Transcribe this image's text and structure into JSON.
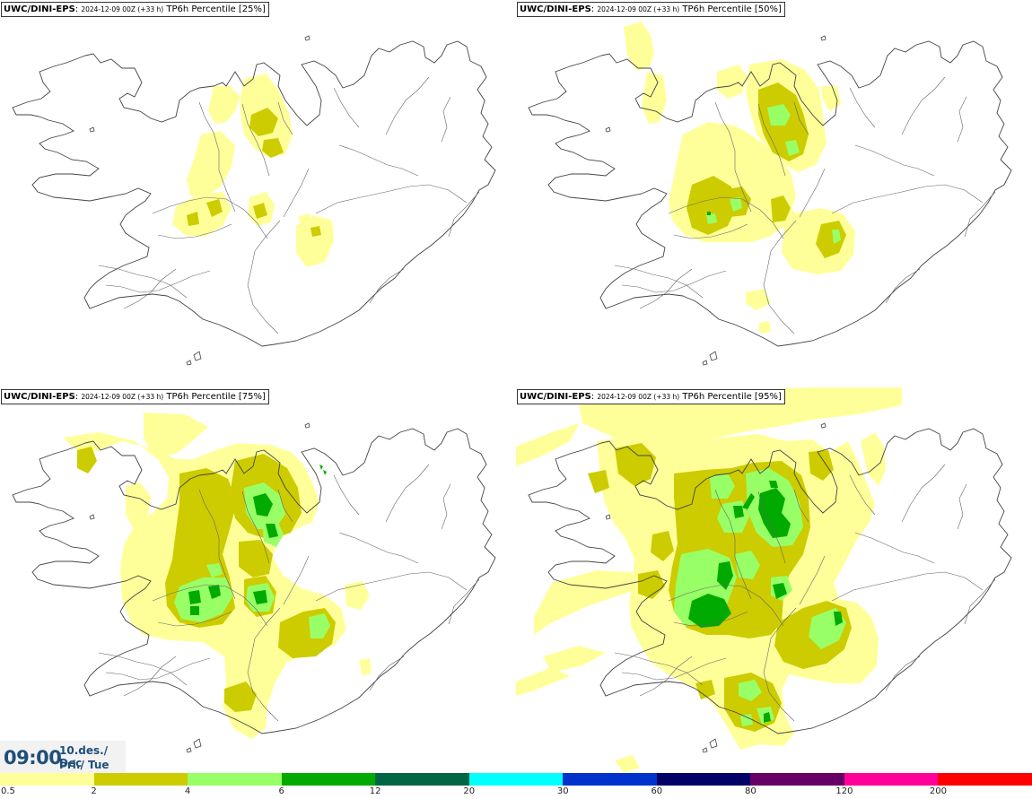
{
  "panels": [
    {
      "model": "UWC/DINI-EPS",
      "run": "2024-12-09 00Z (+33 h)",
      "variable": "TP6h Percentile [25%]",
      "level": 25
    },
    {
      "model": "UWC/DINI-EPS",
      "run": "2024-12-09 00Z (+33 h)",
      "variable": "TP6h Percentile [50%]",
      "level": 50
    },
    {
      "model": "UWC/DINI-EPS",
      "run": "2024-12-09 00Z (+33 h)",
      "variable": "TP6h Percentile [75%]",
      "level": 75
    },
    {
      "model": "UWC/DINI-EPS",
      "run": "2024-12-09 00Z (+33 h)",
      "variable": "TP6h Percentile [95%]",
      "level": 95
    }
  ],
  "valid_time": {
    "time": "09:00",
    "date_line1": "10.des./ Dec",
    "date_line2": "Þri./ Tue"
  },
  "colorbar": {
    "colors": [
      "#ffff99",
      "#cccc00",
      "#99ff66",
      "#00aa00",
      "#006644",
      "#00ffff",
      "#0033cc",
      "#000066",
      "#660066",
      "#ff0099",
      "#ff0000"
    ],
    "labels": [
      "0.5",
      "2",
      "4",
      "6",
      "12",
      "20",
      "30",
      "60",
      "80",
      "120",
      "200"
    ]
  }
}
